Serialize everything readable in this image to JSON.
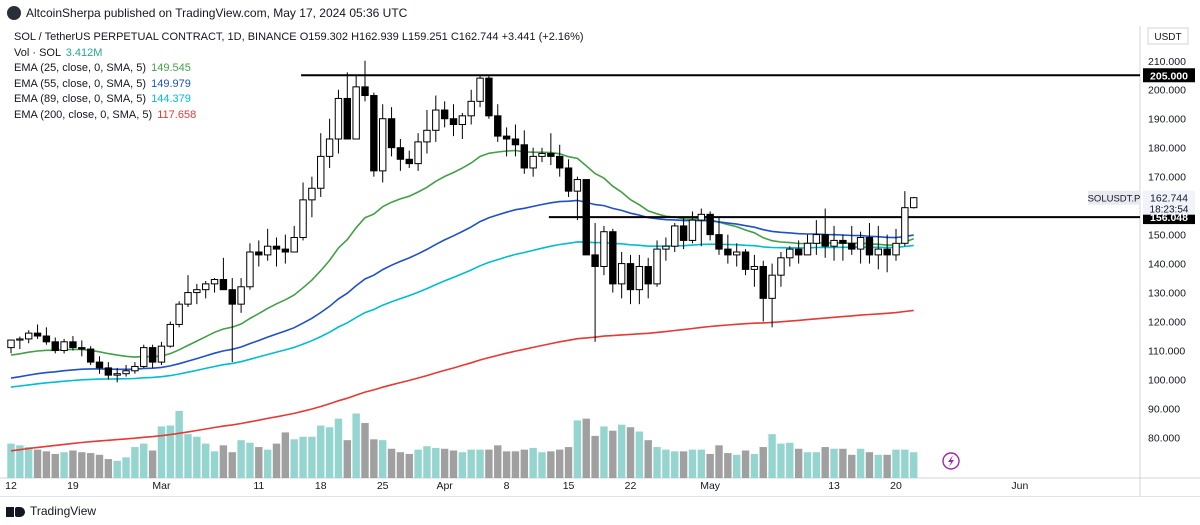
{
  "header": {
    "published": "AltcoinSherpa published on TradingView.com, May 17, 2024 05:36 UTC"
  },
  "legend": {
    "symbol": "SOL / TetherUS PERPETUAL CONTRACT, 1D, BINANCE",
    "ohlc": [
      {
        "label": "O",
        "value": "159.302"
      },
      {
        "label": "H",
        "value": "162.939"
      },
      {
        "label": "L",
        "value": "159.251"
      },
      {
        "label": "C",
        "value": "162.744"
      }
    ],
    "change": "+3.441 (+2.16%)",
    "volume": {
      "label": "Vol · SOL",
      "value": "3.412M",
      "color": "#26a69a"
    },
    "emas": [
      {
        "label": "EMA (25, close, 0, SMA, 5)",
        "value": "149.545",
        "color": "#43a047"
      },
      {
        "label": "EMA (55, close, 0, SMA, 5)",
        "value": "149.979",
        "color": "#1e50c8"
      },
      {
        "label": "EMA (89, close, 0, SMA, 5)",
        "value": "144.379",
        "color": "#00bcd4"
      },
      {
        "label": "EMA (200, close, 0, SMA, 5)",
        "value": "117.658",
        "color": "#e53935"
      }
    ]
  },
  "price_axis": {
    "currency": "USDT",
    "ticks": [
      "210.000",
      "200.000",
      "190.000",
      "180.000",
      "170.000",
      "160.000",
      "150.000",
      "140.000",
      "130.000",
      "120.000",
      "110.000",
      "100.000",
      "90.000",
      "80.000"
    ],
    "tick_values": [
      210,
      200,
      190,
      180,
      170,
      160,
      150,
      140,
      130,
      120,
      110,
      100,
      90,
      80
    ]
  },
  "badges": {
    "level_205": "205.000",
    "level_156": "156.048",
    "symbol": "SOLUSDT.P",
    "last_price": "162.744",
    "countdown": "18:23:54"
  },
  "time_axis": {
    "labels": [
      "12",
      "19",
      "Mar",
      "11",
      "18",
      "25",
      "Apr",
      "8",
      "15",
      "22",
      "May",
      "13",
      "20",
      "Jun"
    ],
    "label_bar_index": [
      0,
      7,
      17,
      28,
      35,
      42,
      49,
      56,
      63,
      70,
      79,
      93,
      100,
      114
    ]
  },
  "footer": {
    "brand": "TradingView"
  },
  "chart_data": {
    "type": "candlestick",
    "title": "SOL / TetherUS PERPETUAL CONTRACT, 1D, BINANCE",
    "x_start": "2024-02-12",
    "interval": "1D",
    "ylim": [
      66,
      222
    ],
    "grid": false,
    "horizontal_levels": [
      {
        "price": 205.0,
        "from_bar": 33,
        "to_bar": 112
      },
      {
        "price": 156.048,
        "from_bar": 61,
        "to_bar": 112
      }
    ],
    "candles": [
      [
        111.0,
        113.8,
        109.0,
        113.6
      ],
      [
        113.6,
        114.8,
        110.5,
        114.0
      ],
      [
        114.0,
        117.0,
        112.5,
        116.0
      ],
      [
        116.0,
        119.0,
        114.0,
        115.0
      ],
      [
        115.0,
        118.0,
        112.0,
        113.0
      ],
      [
        113.0,
        114.5,
        109.0,
        110.0
      ],
      [
        110.0,
        114.0,
        109.0,
        113.0
      ],
      [
        113.0,
        115.0,
        110.0,
        111.0
      ],
      [
        111.0,
        113.5,
        108.0,
        110.5
      ],
      [
        110.5,
        111.5,
        105.0,
        106.0
      ],
      [
        106.0,
        108.0,
        102.0,
        104.0
      ],
      [
        104.0,
        106.0,
        100.0,
        101.5
      ],
      [
        101.5,
        104.0,
        99.0,
        102.0
      ],
      [
        102.0,
        105.0,
        101.0,
        103.0
      ],
      [
        103.0,
        106.0,
        102.0,
        104.5
      ],
      [
        104.5,
        112.0,
        104.0,
        111.0
      ],
      [
        111.0,
        112.0,
        104.0,
        106.0
      ],
      [
        106.0,
        113.0,
        105.0,
        111.5
      ],
      [
        111.5,
        120.0,
        111.0,
        119.0
      ],
      [
        119.0,
        127.0,
        118.0,
        126.0
      ],
      [
        126.0,
        136.0,
        125.0,
        130.0
      ],
      [
        130.0,
        133.0,
        126.0,
        131.0
      ],
      [
        131.0,
        134.0,
        128.0,
        133.0
      ],
      [
        133.0,
        135.0,
        130.0,
        134.5
      ],
      [
        134.5,
        142.0,
        132.0,
        131.0
      ],
      [
        131.0,
        135.0,
        106.0,
        126.0
      ],
      [
        126.0,
        135.0,
        123.0,
        132.0
      ],
      [
        132.0,
        147.0,
        131.0,
        144.0
      ],
      [
        144.0,
        148.0,
        139.0,
        143.0
      ],
      [
        143.0,
        152.0,
        141.0,
        146.0
      ],
      [
        146.0,
        149.0,
        139.0,
        145.0
      ],
      [
        145.0,
        150.0,
        140.0,
        144.0
      ],
      [
        144.0,
        153.0,
        144.0,
        149.0
      ],
      [
        149.0,
        168.0,
        148.0,
        162.0
      ],
      [
        162.0,
        170.0,
        156.0,
        166.0
      ],
      [
        166.0,
        185.0,
        163.0,
        177.0
      ],
      [
        177.0,
        190.0,
        173.0,
        183.0
      ],
      [
        183.0,
        200.0,
        178.0,
        197.0
      ],
      [
        197.0,
        206.0,
        183.0,
        183.0
      ],
      [
        183.0,
        205.0,
        183.0,
        201.0
      ],
      [
        201.0,
        210.0,
        196.0,
        198.0
      ],
      [
        198.0,
        199.0,
        170.0,
        172.0
      ],
      [
        172.0,
        195.0,
        168.0,
        190.0
      ],
      [
        190.0,
        194.0,
        177.0,
        180.0
      ],
      [
        180.0,
        183.0,
        172.0,
        176.0
      ],
      [
        176.0,
        179.0,
        173.0,
        174.5
      ],
      [
        174.5,
        185.0,
        172.0,
        182.0
      ],
      [
        182.0,
        193.0,
        178.0,
        186.0
      ],
      [
        186.0,
        198.0,
        182.0,
        193.0
      ],
      [
        193.0,
        196.0,
        187.0,
        190.0
      ],
      [
        190.0,
        195.0,
        184.0,
        188.0
      ],
      [
        188.0,
        192.0,
        183.0,
        191.0
      ],
      [
        191.0,
        200.0,
        188.0,
        196.0
      ],
      [
        196.0,
        205.0,
        194.0,
        204.0
      ],
      [
        204.0,
        205.0,
        190.0,
        191.0
      ],
      [
        191.0,
        195.0,
        182.0,
        184.0
      ],
      [
        184.0,
        187.0,
        177.0,
        183.0
      ],
      [
        183.0,
        188.0,
        177.0,
        181.0
      ],
      [
        181.0,
        186.0,
        171.0,
        173.0
      ],
      [
        173.0,
        180.0,
        170.0,
        177.0
      ],
      [
        177.0,
        180.0,
        175.0,
        178.0
      ],
      [
        178.0,
        185.0,
        174.0,
        177.0
      ],
      [
        177.0,
        181.0,
        170.0,
        173.0
      ],
      [
        173.0,
        176.0,
        163.0,
        165.0
      ],
      [
        165.0,
        170.0,
        155.0,
        169.0
      ],
      [
        169.0,
        169.0,
        143.0,
        143.0
      ],
      [
        143.0,
        154.0,
        113.0,
        139.0
      ],
      [
        139.0,
        153.0,
        136.0,
        151.0
      ],
      [
        151.0,
        152.0,
        130.0,
        133.0
      ],
      [
        133.0,
        144.0,
        128.0,
        140.0
      ],
      [
        140.0,
        143.0,
        126.0,
        131.0
      ],
      [
        131.0,
        143.0,
        126.0,
        139.0
      ],
      [
        139.0,
        142.0,
        128.0,
        133.0
      ],
      [
        133.0,
        148.0,
        132.0,
        145.0
      ],
      [
        145.0,
        149.0,
        141.0,
        146.0
      ],
      [
        146.0,
        154.0,
        144.0,
        153.0
      ],
      [
        153.0,
        156.0,
        145.0,
        148.0
      ],
      [
        148.0,
        158.0,
        147.0,
        155.0
      ],
      [
        155.0,
        159.0,
        146.0,
        157.0
      ],
      [
        157.0,
        158.0,
        148.0,
        150.0
      ],
      [
        150.0,
        156.0,
        143.0,
        145.0
      ],
      [
        145.0,
        150.0,
        140.0,
        143.0
      ],
      [
        143.0,
        147.0,
        139.0,
        144.0
      ],
      [
        144.0,
        145.0,
        136.0,
        138.0
      ],
      [
        138.0,
        143.0,
        132.0,
        139.0
      ],
      [
        139.0,
        141.0,
        120.0,
        128.0
      ],
      [
        128.0,
        140.0,
        118.0,
        136.0
      ],
      [
        136.0,
        144.0,
        132.0,
        142.0
      ],
      [
        142.0,
        146.0,
        139.0,
        145.0
      ],
      [
        145.0,
        148.0,
        140.0,
        143.0
      ],
      [
        143.0,
        150.0,
        143.0,
        147.0
      ],
      [
        147.0,
        155.0,
        143.0,
        150.0
      ],
      [
        150.0,
        159.0,
        142.0,
        146.0
      ],
      [
        146.0,
        153.0,
        141.0,
        148.0
      ],
      [
        148.0,
        150.0,
        141.0,
        147.0
      ],
      [
        147.0,
        153.0,
        143.0,
        145.0
      ],
      [
        145.0,
        151.0,
        140.0,
        149.0
      ],
      [
        149.0,
        154.0,
        140.0,
        143.0
      ],
      [
        143.0,
        153.0,
        138.0,
        145.0
      ],
      [
        145.0,
        150.0,
        137.0,
        143.0
      ],
      [
        143.0,
        152.0,
        141.0,
        147.0
      ],
      [
        147.0,
        165.0,
        146.0,
        159.3
      ],
      [
        159.3,
        163.0,
        159.0,
        162.744
      ]
    ],
    "volume": [
      40,
      38,
      36,
      33,
      31,
      28,
      30,
      32,
      30,
      29,
      27,
      22,
      20,
      24,
      36,
      40,
      32,
      60,
      61,
      78,
      51,
      48,
      40,
      31,
      38,
      30,
      44,
      41,
      36,
      33,
      40,
      53,
      45,
      48,
      48,
      61,
      59,
      69,
      44,
      75,
      64,
      45,
      44,
      34,
      30,
      28,
      33,
      37,
      35,
      34,
      32,
      30,
      33,
      33,
      33,
      38,
      31,
      31,
      33,
      35,
      30,
      31,
      33,
      36,
      67,
      69,
      49,
      60,
      55,
      62,
      59,
      54,
      44,
      36,
      33,
      31,
      31,
      33,
      33,
      28,
      38,
      29,
      27,
      32,
      28,
      36,
      51,
      40,
      41,
      34,
      30,
      30,
      36,
      34,
      34,
      27,
      34,
      30,
      27,
      27,
      33,
      33,
      30
    ],
    "ema": [
      {
        "name": "EMA (25, close, 0, SMA, 5)",
        "color": "#43a047",
        "last": 149.545
      },
      {
        "name": "EMA (55, close, 0, SMA, 5)",
        "color": "#1e50c8",
        "last": 149.979
      },
      {
        "name": "EMA (89, close, 0, SMA, 5)",
        "color": "#00bcd4",
        "last": 144.379
      },
      {
        "name": "EMA (200, close, 0, SMA, 5)",
        "color": "#e53935",
        "last": 117.658
      }
    ]
  }
}
